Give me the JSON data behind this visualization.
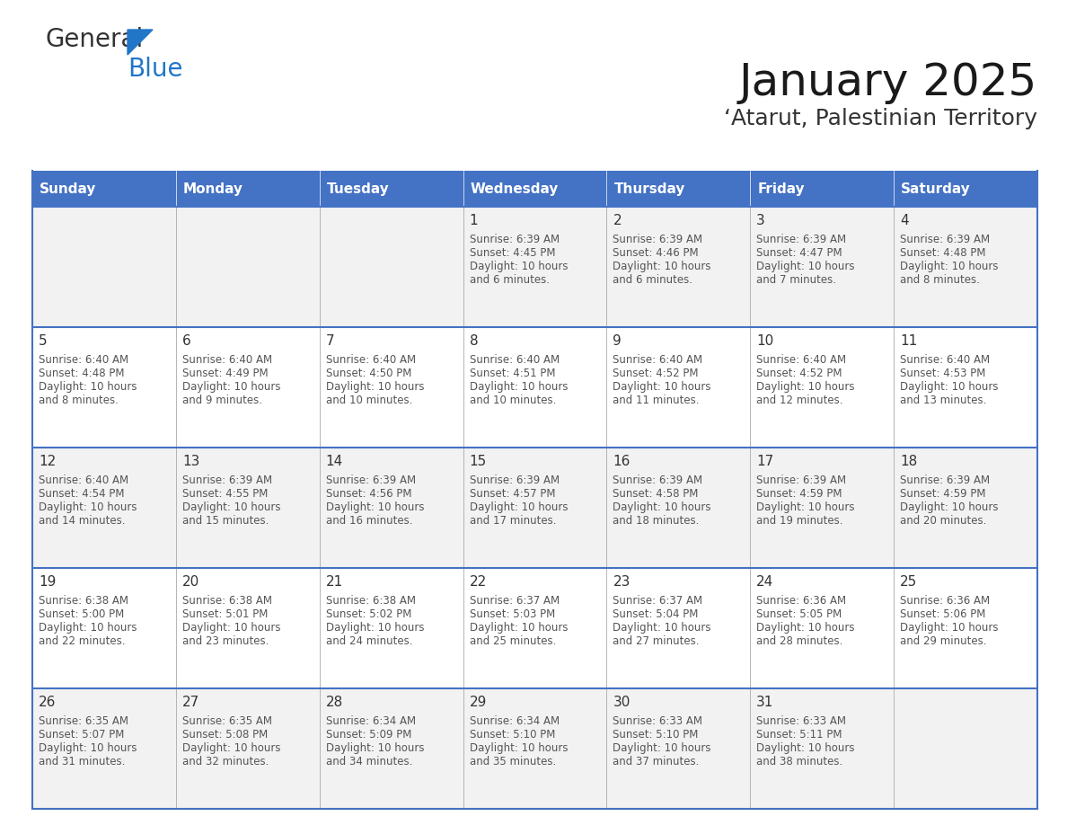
{
  "title": "January 2025",
  "subtitle": "‘Atarut, Palestinian Territory",
  "days_of_week": [
    "Sunday",
    "Monday",
    "Tuesday",
    "Wednesday",
    "Thursday",
    "Friday",
    "Saturday"
  ],
  "header_bg": "#4472C4",
  "header_text": "#FFFFFF",
  "row_bg_odd": "#F2F2F2",
  "row_bg_even": "#FFFFFF",
  "border_color": "#4472C4",
  "sep_color": "#AAAAAA",
  "text_color": "#555555",
  "calendar_data": [
    [
      {
        "day": null
      },
      {
        "day": null
      },
      {
        "day": null
      },
      {
        "day": 1,
        "sunrise": "6:39 AM",
        "sunset": "4:45 PM",
        "daylight": "10 hours and 6 minutes."
      },
      {
        "day": 2,
        "sunrise": "6:39 AM",
        "sunset": "4:46 PM",
        "daylight": "10 hours and 6 minutes."
      },
      {
        "day": 3,
        "sunrise": "6:39 AM",
        "sunset": "4:47 PM",
        "daylight": "10 hours and 7 minutes."
      },
      {
        "day": 4,
        "sunrise": "6:39 AM",
        "sunset": "4:48 PM",
        "daylight": "10 hours and 8 minutes."
      }
    ],
    [
      {
        "day": 5,
        "sunrise": "6:40 AM",
        "sunset": "4:48 PM",
        "daylight": "10 hours and 8 minutes."
      },
      {
        "day": 6,
        "sunrise": "6:40 AM",
        "sunset": "4:49 PM",
        "daylight": "10 hours and 9 minutes."
      },
      {
        "day": 7,
        "sunrise": "6:40 AM",
        "sunset": "4:50 PM",
        "daylight": "10 hours and 10 minutes."
      },
      {
        "day": 8,
        "sunrise": "6:40 AM",
        "sunset": "4:51 PM",
        "daylight": "10 hours and 10 minutes."
      },
      {
        "day": 9,
        "sunrise": "6:40 AM",
        "sunset": "4:52 PM",
        "daylight": "10 hours and 11 minutes."
      },
      {
        "day": 10,
        "sunrise": "6:40 AM",
        "sunset": "4:52 PM",
        "daylight": "10 hours and 12 minutes."
      },
      {
        "day": 11,
        "sunrise": "6:40 AM",
        "sunset": "4:53 PM",
        "daylight": "10 hours and 13 minutes."
      }
    ],
    [
      {
        "day": 12,
        "sunrise": "6:40 AM",
        "sunset": "4:54 PM",
        "daylight": "10 hours and 14 minutes."
      },
      {
        "day": 13,
        "sunrise": "6:39 AM",
        "sunset": "4:55 PM",
        "daylight": "10 hours and 15 minutes."
      },
      {
        "day": 14,
        "sunrise": "6:39 AM",
        "sunset": "4:56 PM",
        "daylight": "10 hours and 16 minutes."
      },
      {
        "day": 15,
        "sunrise": "6:39 AM",
        "sunset": "4:57 PM",
        "daylight": "10 hours and 17 minutes."
      },
      {
        "day": 16,
        "sunrise": "6:39 AM",
        "sunset": "4:58 PM",
        "daylight": "10 hours and 18 minutes."
      },
      {
        "day": 17,
        "sunrise": "6:39 AM",
        "sunset": "4:59 PM",
        "daylight": "10 hours and 19 minutes."
      },
      {
        "day": 18,
        "sunrise": "6:39 AM",
        "sunset": "4:59 PM",
        "daylight": "10 hours and 20 minutes."
      }
    ],
    [
      {
        "day": 19,
        "sunrise": "6:38 AM",
        "sunset": "5:00 PM",
        "daylight": "10 hours and 22 minutes."
      },
      {
        "day": 20,
        "sunrise": "6:38 AM",
        "sunset": "5:01 PM",
        "daylight": "10 hours and 23 minutes."
      },
      {
        "day": 21,
        "sunrise": "6:38 AM",
        "sunset": "5:02 PM",
        "daylight": "10 hours and 24 minutes."
      },
      {
        "day": 22,
        "sunrise": "6:37 AM",
        "sunset": "5:03 PM",
        "daylight": "10 hours and 25 minutes."
      },
      {
        "day": 23,
        "sunrise": "6:37 AM",
        "sunset": "5:04 PM",
        "daylight": "10 hours and 27 minutes."
      },
      {
        "day": 24,
        "sunrise": "6:36 AM",
        "sunset": "5:05 PM",
        "daylight": "10 hours and 28 minutes."
      },
      {
        "day": 25,
        "sunrise": "6:36 AM",
        "sunset": "5:06 PM",
        "daylight": "10 hours and 29 minutes."
      }
    ],
    [
      {
        "day": 26,
        "sunrise": "6:35 AM",
        "sunset": "5:07 PM",
        "daylight": "10 hours and 31 minutes."
      },
      {
        "day": 27,
        "sunrise": "6:35 AM",
        "sunset": "5:08 PM",
        "daylight": "10 hours and 32 minutes."
      },
      {
        "day": 28,
        "sunrise": "6:34 AM",
        "sunset": "5:09 PM",
        "daylight": "10 hours and 34 minutes."
      },
      {
        "day": 29,
        "sunrise": "6:34 AM",
        "sunset": "5:10 PM",
        "daylight": "10 hours and 35 minutes."
      },
      {
        "day": 30,
        "sunrise": "6:33 AM",
        "sunset": "5:10 PM",
        "daylight": "10 hours and 37 minutes."
      },
      {
        "day": 31,
        "sunrise": "6:33 AM",
        "sunset": "5:11 PM",
        "daylight": "10 hours and 38 minutes."
      },
      {
        "day": null
      }
    ]
  ]
}
